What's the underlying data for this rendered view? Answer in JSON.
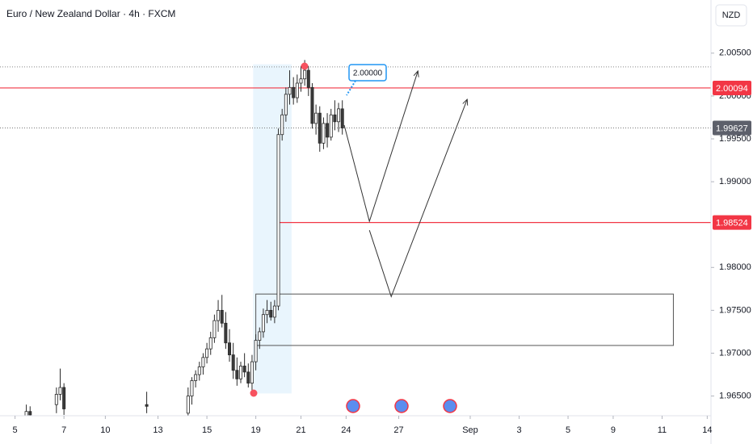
{
  "chart_data": {
    "type": "candlestick",
    "title": "Euro / New Zealand Dollar · 4h · FXCM",
    "currency": "NZD",
    "up_color": "#ffffff",
    "down_color": "#3a3a3a",
    "outline_color": "#2a2a2a",
    "xlim": [
      -4,
      185
    ],
    "ylim": [
      1.9627,
      2.0112
    ],
    "grid": false,
    "xticks": [
      {
        "value": 0,
        "label": "5"
      },
      {
        "value": 13,
        "label": "7"
      },
      {
        "value": 24,
        "label": "10"
      },
      {
        "value": 38,
        "label": "13"
      },
      {
        "value": 51,
        "label": "15"
      },
      {
        "value": 64,
        "label": "19"
      },
      {
        "value": 76,
        "label": "21"
      },
      {
        "value": 88,
        "label": "24"
      },
      {
        "value": 102,
        "label": "27"
      },
      {
        "value": 121,
        "label": "Sep"
      },
      {
        "value": 134,
        "label": "3"
      },
      {
        "value": 147,
        "label": "5"
      },
      {
        "value": 159,
        "label": "9"
      },
      {
        "value": 172,
        "label": "11"
      },
      {
        "value": 184,
        "label": "14"
      }
    ],
    "yticks": [
      {
        "value": 1.965,
        "label": "1.96500"
      },
      {
        "value": 1.97,
        "label": "1.97000"
      },
      {
        "value": 1.975,
        "label": "1.97500"
      },
      {
        "value": 1.98,
        "label": "1.98000"
      },
      {
        "value": 1.99,
        "label": "1.99000"
      },
      {
        "value": 1.995,
        "label": "1.99500"
      },
      {
        "value": 2.0,
        "label": "2.00000"
      },
      {
        "value": 2.005,
        "label": "2.00500"
      }
    ],
    "x": [
      3,
      4,
      11,
      12,
      13,
      35,
      46,
      47,
      48,
      49,
      50,
      51,
      52,
      53,
      54,
      55,
      56,
      57,
      58,
      59,
      60,
      61,
      62,
      63,
      64,
      65,
      66,
      67,
      68,
      69,
      70,
      71,
      72,
      73,
      74,
      75,
      76,
      77,
      78,
      79,
      80,
      81,
      82,
      83,
      84,
      85,
      86,
      87
    ],
    "open": [
      1.9625,
      1.9632,
      1.964,
      1.9652,
      1.966,
      1.964,
      1.963,
      1.965,
      1.9668,
      1.9675,
      1.9684,
      1.9695,
      1.9705,
      1.9718,
      1.9738,
      1.975,
      1.9735,
      1.9712,
      1.9698,
      1.968,
      1.967,
      1.9685,
      1.9678,
      1.9665,
      1.969,
      1.9715,
      1.9725,
      1.9745,
      1.975,
      1.9742,
      1.9755,
      1.9955,
      1.9978,
      2.0002,
      2.001,
      1.9998,
      2.0015,
      2.002,
      2.003,
      2.001,
      1.9968,
      1.998,
      1.9945,
      1.9968,
      1.9952,
      1.9978,
      1.997,
      1.9985
    ],
    "high": [
      1.964,
      1.9638,
      1.966,
      1.9682,
      1.9665,
      1.9655,
      1.966,
      1.9672,
      1.968,
      1.969,
      1.97,
      1.9712,
      1.9725,
      1.9745,
      1.9762,
      1.9768,
      1.9748,
      1.9728,
      1.9712,
      1.9695,
      1.969,
      1.97,
      1.9688,
      1.9698,
      1.9722,
      1.973,
      1.9752,
      1.9762,
      1.976,
      1.9762,
      1.9962,
      1.9985,
      2.001,
      2.003,
      2.0022,
      2.0025,
      2.0035,
      2.0042,
      2.0035,
      2.0015,
      1.999,
      1.9988,
      1.9975,
      1.998,
      1.9985,
      1.9995,
      1.9992,
      1.9995
    ],
    "low": [
      1.962,
      1.9622,
      1.963,
      1.9645,
      1.9628,
      1.963,
      1.9625,
      1.964,
      1.966,
      1.9668,
      1.9675,
      1.9688,
      1.9698,
      1.9712,
      1.9725,
      1.973,
      1.9705,
      1.969,
      1.967,
      1.9662,
      1.9665,
      1.9672,
      1.966,
      1.9655,
      1.968,
      1.9705,
      1.9718,
      1.9735,
      1.9738,
      1.9735,
      1.975,
      1.9948,
      1.997,
      1.999,
      1.999,
      1.9992,
      2.0005,
      2.0012,
      2.0,
      1.9962,
      1.9955,
      1.9935,
      1.9938,
      1.994,
      1.9948,
      1.996,
      1.9958,
      1.9955
    ],
    "close": [
      1.9632,
      1.9628,
      1.9652,
      1.966,
      1.9635,
      1.9638,
      1.965,
      1.9668,
      1.9675,
      1.9684,
      1.9695,
      1.9705,
      1.9718,
      1.9738,
      1.975,
      1.9735,
      1.9712,
      1.9698,
      1.968,
      1.967,
      1.9685,
      1.9678,
      1.9665,
      1.969,
      1.9715,
      1.9725,
      1.9745,
      1.975,
      1.9742,
      1.9755,
      1.9955,
      1.9978,
      2.0002,
      2.001,
      1.9998,
      2.0015,
      2.002,
      2.003,
      2.001,
      1.9968,
      1.998,
      1.9945,
      1.9968,
      1.9952,
      1.9978,
      1.997,
      1.9985,
      1.99627
    ],
    "levels": [
      {
        "value": 2.00094,
        "label": "2.00094",
        "color": "#f23645",
        "from": -4
      },
      {
        "value": 1.98524,
        "label": "1.98524",
        "color": "#f23645",
        "from": 70
      }
    ],
    "last_price": {
      "value": 1.99627,
      "label": "1.99627",
      "color": "#5d606b"
    },
    "dotted_level": 2.0034,
    "highlight": {
      "x": [
        63.3,
        73.5
      ],
      "y": [
        1.9653,
        2.0037
      ],
      "color": "#e3f2fd"
    },
    "zone": {
      "x": [
        64,
        175
      ],
      "y": [
        1.9709,
        1.9769
      ]
    },
    "arrows": [
      {
        "x": [
          87.5,
          94.2,
          107.1
        ],
        "y": [
          1.9966,
          1.98538,
          2.00292
        ]
      },
      {
        "x": [
          94.2,
          100,
          120.2
        ],
        "y": [
          1.98434,
          1.9766,
          1.99962
        ]
      }
    ],
    "callout": {
      "text": "2.00000",
      "color": "#2196f3"
    }
  }
}
